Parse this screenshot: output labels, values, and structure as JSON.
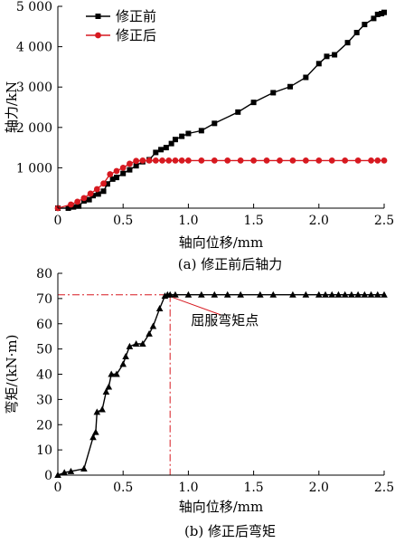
{
  "chart_data": [
    {
      "type": "line",
      "caption": "(a) 修正前后轴力",
      "xlabel": "轴向位移/mm",
      "ylabel": "轴力/kN",
      "xlim": [
        0,
        2.5
      ],
      "ylim": [
        0,
        5000
      ],
      "xticks": [
        0,
        0.5,
        1.0,
        1.5,
        2.0,
        2.5
      ],
      "xtick_labels": [
        "0",
        "0.5",
        "1.0",
        "1.5",
        "2.0",
        "2.5"
      ],
      "yticks": [
        1000,
        2000,
        3000,
        4000,
        5000
      ],
      "ytick_labels": [
        "1 000",
        "2 000",
        "3 000",
        "4 000",
        "5 000"
      ],
      "grid": false,
      "legend_position": "top-left",
      "series": [
        {
          "name": "修正前",
          "color": "#000000",
          "marker": "square",
          "points": [
            [
              0.0,
              0
            ],
            [
              0.08,
              0
            ],
            [
              0.12,
              30
            ],
            [
              0.16,
              50
            ],
            [
              0.2,
              180
            ],
            [
              0.24,
              210
            ],
            [
              0.27,
              310
            ],
            [
              0.31,
              350
            ],
            [
              0.35,
              420
            ],
            [
              0.38,
              600
            ],
            [
              0.42,
              720
            ],
            [
              0.45,
              760
            ],
            [
              0.5,
              860
            ],
            [
              0.55,
              950
            ],
            [
              0.6,
              1050
            ],
            [
              0.65,
              1150
            ],
            [
              0.7,
              1200
            ],
            [
              0.75,
              1380
            ],
            [
              0.79,
              1450
            ],
            [
              0.83,
              1500
            ],
            [
              0.87,
              1600
            ],
            [
              0.9,
              1700
            ],
            [
              0.95,
              1780
            ],
            [
              1.0,
              1850
            ],
            [
              1.1,
              1920
            ],
            [
              1.2,
              2100
            ],
            [
              1.38,
              2380
            ],
            [
              1.5,
              2620
            ],
            [
              1.65,
              2860
            ],
            [
              1.78,
              3010
            ],
            [
              1.9,
              3240
            ],
            [
              2.0,
              3580
            ],
            [
              2.06,
              3760
            ],
            [
              2.12,
              3800
            ],
            [
              2.22,
              4100
            ],
            [
              2.29,
              4350
            ],
            [
              2.35,
              4550
            ],
            [
              2.42,
              4700
            ],
            [
              2.45,
              4800
            ],
            [
              2.48,
              4820
            ],
            [
              2.5,
              4850
            ]
          ]
        },
        {
          "name": "修正后",
          "color": "#d71920",
          "marker": "circle",
          "points": [
            [
              0.0,
              0
            ],
            [
              0.1,
              90
            ],
            [
              0.15,
              160
            ],
            [
              0.2,
              250
            ],
            [
              0.25,
              360
            ],
            [
              0.3,
              470
            ],
            [
              0.35,
              610
            ],
            [
              0.4,
              840
            ],
            [
              0.45,
              920
            ],
            [
              0.5,
              1000
            ],
            [
              0.55,
              1100
            ],
            [
              0.6,
              1170
            ],
            [
              0.65,
              1180
            ],
            [
              0.7,
              1180
            ],
            [
              0.75,
              1180
            ],
            [
              0.8,
              1180
            ],
            [
              0.85,
              1180
            ],
            [
              0.9,
              1180
            ],
            [
              0.95,
              1180
            ],
            [
              1.0,
              1180
            ],
            [
              1.1,
              1180
            ],
            [
              1.2,
              1180
            ],
            [
              1.3,
              1180
            ],
            [
              1.4,
              1180
            ],
            [
              1.5,
              1180
            ],
            [
              1.6,
              1180
            ],
            [
              1.7,
              1180
            ],
            [
              1.8,
              1180
            ],
            [
              1.9,
              1180
            ],
            [
              2.0,
              1180
            ],
            [
              2.1,
              1180
            ],
            [
              2.2,
              1180
            ],
            [
              2.3,
              1180
            ],
            [
              2.4,
              1180
            ],
            [
              2.45,
              1180
            ],
            [
              2.5,
              1180
            ]
          ]
        }
      ]
    },
    {
      "type": "line",
      "caption": "(b) 修正后弯矩",
      "xlabel": "轴向位移/mm",
      "ylabel": "弯矩/(kN·m)",
      "xlim": [
        0,
        2.5
      ],
      "ylim": [
        0,
        80
      ],
      "xticks": [
        0,
        0.5,
        1.0,
        1.5,
        2.0,
        2.5
      ],
      "xtick_labels": [
        "0",
        "0.5",
        "1.0",
        "1.5",
        "2.0",
        "2.5"
      ],
      "yticks": [
        0,
        10,
        20,
        30,
        40,
        50,
        60,
        70,
        80
      ],
      "ytick_labels": [
        "0",
        "10",
        "20",
        "30",
        "40",
        "50",
        "60",
        "70",
        "80"
      ],
      "grid": false,
      "annotation": {
        "text": "屈服弯矩点",
        "x": 0.86,
        "y": 71.5,
        "color": "#d71920"
      },
      "series": [
        {
          "color": "#000000",
          "marker": "triangle",
          "points": [
            [
              0.0,
              0
            ],
            [
              0.05,
              1
            ],
            [
              0.1,
              1.5
            ],
            [
              0.2,
              2.5
            ],
            [
              0.27,
              15
            ],
            [
              0.29,
              17
            ],
            [
              0.3,
              25
            ],
            [
              0.34,
              26
            ],
            [
              0.37,
              33
            ],
            [
              0.39,
              35
            ],
            [
              0.41,
              40
            ],
            [
              0.45,
              40
            ],
            [
              0.5,
              44
            ],
            [
              0.52,
              47
            ],
            [
              0.55,
              51
            ],
            [
              0.6,
              52
            ],
            [
              0.65,
              52
            ],
            [
              0.7,
              56
            ],
            [
              0.73,
              59
            ],
            [
              0.78,
              66
            ],
            [
              0.82,
              71
            ],
            [
              0.84,
              71.5
            ],
            [
              0.86,
              71.5
            ],
            [
              0.9,
              71.5
            ],
            [
              1.0,
              71.5
            ],
            [
              1.1,
              71.5
            ],
            [
              1.2,
              71.5
            ],
            [
              1.3,
              71.5
            ],
            [
              1.4,
              71.5
            ],
            [
              1.55,
              71.5
            ],
            [
              1.65,
              71.5
            ],
            [
              1.8,
              71.5
            ],
            [
              1.9,
              71.5
            ],
            [
              2.0,
              71.5
            ],
            [
              2.05,
              71.5
            ],
            [
              2.1,
              71.5
            ],
            [
              2.15,
              71.5
            ],
            [
              2.2,
              71.5
            ],
            [
              2.25,
              71.5
            ],
            [
              2.3,
              71.5
            ],
            [
              2.35,
              71.5
            ],
            [
              2.4,
              71.5
            ],
            [
              2.45,
              71.5
            ],
            [
              2.5,
              71.5
            ]
          ]
        }
      ]
    }
  ]
}
